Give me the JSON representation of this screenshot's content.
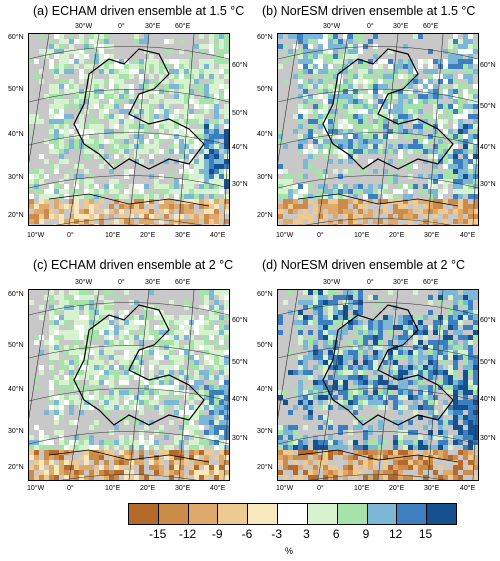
{
  "panels": [
    {
      "title": "(a) ECHAM driven ensemble at 1.5 °C",
      "model": "ECHAM",
      "warming": "1.5 °C"
    },
    {
      "title": "(b) NorESM driven ensemble at 1.5 °C",
      "model": "NorESM",
      "warming": "1.5 °C"
    },
    {
      "title": "(c) ECHAM driven ensemble at 2 °C",
      "model": "ECHAM",
      "warming": "2 °C"
    },
    {
      "title": "(d) NorESM driven ensemble at 2 °C",
      "model": "NorESM",
      "warming": "2 °C"
    }
  ],
  "axes": {
    "top_labels": [
      "30°W",
      "0°",
      "30°E",
      "60°E"
    ],
    "bottom_labels": [
      "10°W",
      "0°",
      "10°E",
      "20°E",
      "30°E",
      "40°E"
    ],
    "left_labels": [
      "60°N",
      "50°N",
      "40°N",
      "30°N",
      "20°N"
    ],
    "right_labels": [
      "60°N",
      "50°N",
      "40°N",
      "30°N"
    ]
  },
  "colorbar": {
    "labels": [
      "-15",
      "-12",
      "-9",
      "-6",
      "-3",
      "3",
      "6",
      "9",
      "12",
      "15"
    ],
    "colors": [
      "#b36a2a",
      "#cc8b48",
      "#dea96a",
      "#ecca92",
      "#f7e9bd",
      "#ffffff",
      "#d6f2cf",
      "#a6e3aa",
      "#7db7d6",
      "#3b7fc0",
      "#15508f"
    ],
    "unit": "%"
  }
}
